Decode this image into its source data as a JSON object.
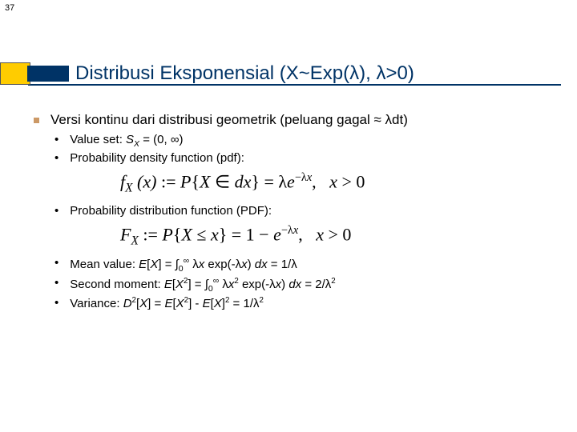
{
  "slide_number": "37",
  "title": "Distribusi Eksponensial (X~Exp(λ), λ>0)",
  "main_bullet": "Versi kontinu dari distribusi geometrik (peluang gagal ≈ λdt)",
  "items": {
    "value_set_label": "Value set: ",
    "value_set_val": "S",
    "value_set_rest": " = (0, ∞)",
    "pdf_label": "Probability density function (pdf):",
    "pdf_formula_lhs": "f",
    "pdf_formula_mid": "(x) := P{X ∈ dx} = λe",
    "pdf_formula_exp": "−λx",
    "pdf_formula_cond": ",   x > 0",
    "cdf_label": "Probability distribution function (PDF):",
    "cdf_formula_lhs": "F",
    "cdf_formula_mid": " := P{X ≤ x} = 1 − e",
    "cdf_formula_exp": "−λx",
    "cdf_formula_cond": ",   x > 0",
    "mean_label": "Mean value: ",
    "mean_val": "E[X] = ∫₀∞ λx exp(-λx) dx = 1/λ",
    "second_label": "Second moment: ",
    "second_val": "E[X²] = ∫₀∞ λx² exp(-λx) dx = 2/λ²",
    "var_label": "Variance: ",
    "var_val": "D²[X] = E[X²] - E[X]² = 1/λ²"
  },
  "colors": {
    "navy": "#003366",
    "accent_yellow": "#ffcc00",
    "bullet_tan": "#cc9966",
    "text": "#000000",
    "bg": "#ffffff"
  },
  "fonts": {
    "title_size_pt": 24,
    "body_size_pt": 17,
    "sub_size_pt": 15,
    "formula_size_pt": 22,
    "title_family": "Verdana",
    "formula_family": "Times New Roman"
  }
}
